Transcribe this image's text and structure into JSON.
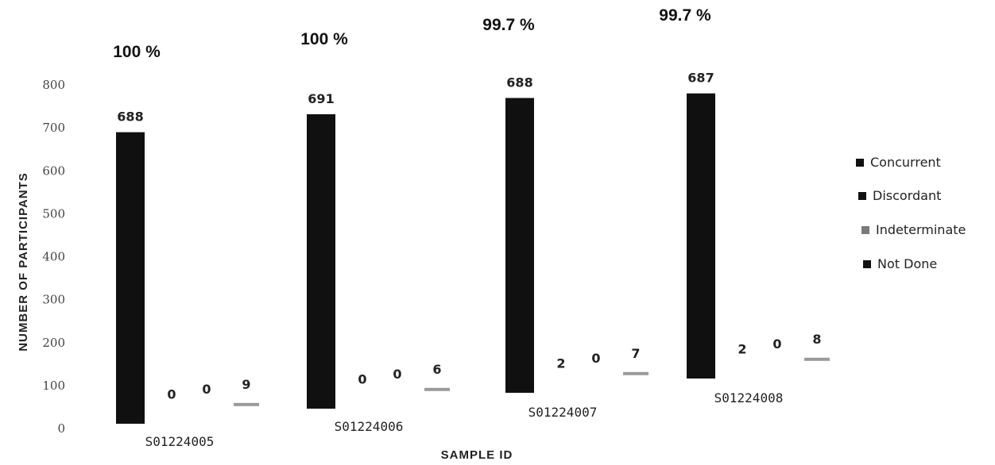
{
  "chart_data": {
    "type": "bar",
    "xlabel": "SAMPLE ID",
    "ylabel": "NUMBER OF PARTICIPANTS",
    "ylim": [
      0,
      800
    ],
    "yticks": [
      "0",
      "100",
      "200",
      "300",
      "400",
      "500",
      "600",
      "700",
      "800"
    ],
    "categories": [
      "S01224005",
      "S01224006",
      "S01224007",
      "S01224008"
    ],
    "percent_labels": [
      "100 %",
      "100 %",
      "99.7 %",
      "99.7 %"
    ],
    "series": [
      {
        "name": "Concurrent",
        "color": "#101010",
        "values": [
          688,
          691,
          688,
          687
        ]
      },
      {
        "name": "Discordant",
        "color": "#1a1a1a",
        "values": [
          0,
          0,
          2,
          2
        ]
      },
      {
        "name": "Indeterminate",
        "color": "#8a8a8a",
        "values": [
          0,
          0,
          0,
          0
        ]
      },
      {
        "name": "Not Done",
        "color": "#a0a0a0",
        "values": [
          9,
          6,
          7,
          8
        ]
      }
    ],
    "value_labels": [
      [
        "688",
        "0",
        "0",
        "9"
      ],
      [
        "691",
        "0",
        "0",
        "6"
      ],
      [
        "688",
        "2",
        "0",
        "7"
      ],
      [
        "687",
        "2",
        "0",
        "8"
      ]
    ],
    "legend_position": "right",
    "grid": false
  }
}
